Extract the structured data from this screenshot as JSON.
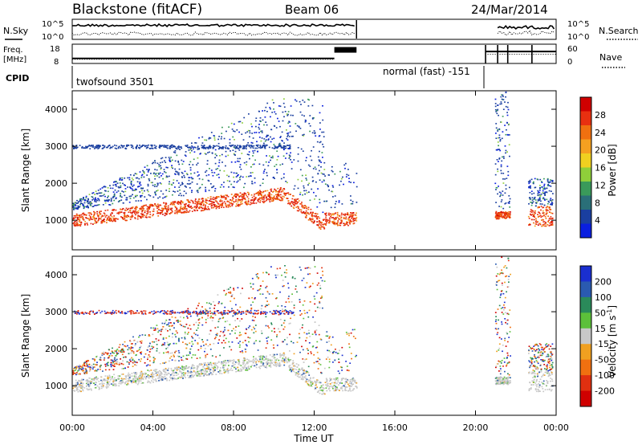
{
  "header": {
    "station": "Blackstone (fitACF)",
    "beam": "Beam 06",
    "date": "24/Mar/2014"
  },
  "status_panels": {
    "nsky": {
      "label": "N.Sky",
      "ticks": [
        "10^5",
        "10^0"
      ]
    },
    "nsearch": {
      "label": "N.Search",
      "ticks": [
        "10^5",
        "10^0"
      ]
    },
    "freq": {
      "label_line1": "Freq.",
      "label_line2": "[MHz]",
      "ticks": [
        "18",
        "8"
      ],
      "level_first_half_mhz": 10.6,
      "level_late_mhz": 14.2
    },
    "nave": {
      "label": "Nave",
      "ticks": [
        "60",
        "0"
      ]
    },
    "cpid": {
      "label": "CPID",
      "mode1": "twofsound 3501",
      "mode2": "normal (fast) -151"
    }
  },
  "chart_data": [
    {
      "type": "heatmap",
      "title": "",
      "ylabel": "Slant Range [km]",
      "xlabel": "",
      "ylim": [
        200,
        4500
      ],
      "yticks": [
        "1000",
        "2000",
        "3000",
        "4000"
      ],
      "xlim_hours": [
        0,
        24
      ],
      "colorbar": {
        "label": "Power [dB]",
        "ticks": [
          "4",
          "8",
          "12",
          "16",
          "20",
          "24",
          "28"
        ],
        "colors": [
          "#0a1fe0",
          "#1a3fa0",
          "#2a6f78",
          "#3a9a5a",
          "#8fcf3a",
          "#f0d020",
          "#f5a020",
          "#f07010",
          "#e83010",
          "#d00000"
        ]
      }
    },
    {
      "type": "heatmap",
      "title": "",
      "ylabel": "Slant Range [km]",
      "xlabel": "Time UT",
      "ylim": [
        200,
        4500
      ],
      "yticks": [
        "1000",
        "2000",
        "3000",
        "4000"
      ],
      "xticks": [
        "00:00",
        "04:00",
        "08:00",
        "12:00",
        "16:00",
        "20:00",
        "00:00"
      ],
      "xlim_hours": [
        0,
        24
      ],
      "colorbar": {
        "label_main": "Velocity",
        "label_unit": "[m s",
        "label_sup": "-1",
        "label_end": "]",
        "ticks": [
          "200",
          "100",
          "50",
          "15",
          "-15",
          "-50",
          "-100",
          "-200"
        ],
        "colors": [
          "#1a2fd0",
          "#2a5ab0",
          "#2a8a5a",
          "#5cc03a",
          "#c8c8c8",
          "#f0a020",
          "#f07010",
          "#e03010",
          "#d00000"
        ]
      }
    }
  ]
}
